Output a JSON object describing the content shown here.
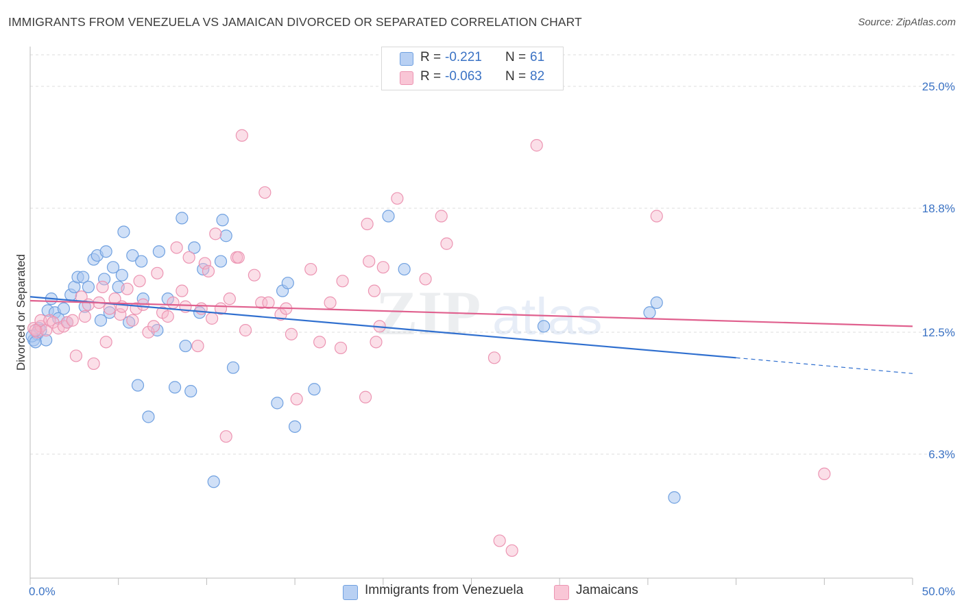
{
  "header": {
    "title": "IMMIGRANTS FROM VENEZUELA VS JAMAICAN DIVORCED OR SEPARATED CORRELATION CHART",
    "source": "Source: ZipAtlas.com"
  },
  "legend": {
    "r_label": "R =",
    "n_label": "N =",
    "rows": [
      {
        "r": "-0.221",
        "n": "61"
      },
      {
        "r": "-0.063",
        "n": "82"
      }
    ]
  },
  "bottom_legend": {
    "items": [
      "Immigrants from Venezuela",
      "Jamaicans"
    ]
  },
  "watermark": {
    "text_bold": "ZIP",
    "text_light": "atlas"
  },
  "colors": {
    "blue_fill": "#a9c6f0",
    "blue_stroke": "#6fa0e0",
    "blue_line": "#2f6fcf",
    "pink_fill": "#f7b8cc",
    "pink_stroke": "#ec94b2",
    "pink_line": "#e0608e",
    "grid": "#dddddd",
    "tick_label": "#3a72c4"
  },
  "chart_data": {
    "type": "scatter",
    "title": "IMMIGRANTS FROM VENEZUELA VS JAMAICAN DIVORCED OR SEPARATED CORRELATION CHART",
    "xlabel": "",
    "ylabel": "Divorced or Separated",
    "xlim": [
      0,
      50
    ],
    "ylim": [
      0,
      26.6
    ],
    "x_tick_labels": [
      "0.0%",
      "50.0%"
    ],
    "y_ticks": [
      6.3,
      12.5,
      18.8,
      25.0
    ],
    "y_tick_labels": [
      "6.3%",
      "12.5%",
      "18.8%",
      "25.0%"
    ],
    "grid": true,
    "legend_position": "top-center",
    "series": [
      {
        "name": "Immigrants from Venezuela",
        "color": "#a9c6f0",
        "trend": {
          "x0": 0,
          "y0": 14.3,
          "x1": 40,
          "y1": 11.2,
          "dash_to": 50,
          "dash_y": 10.4
        },
        "points": [
          [
            0.2,
            12.1
          ],
          [
            0.4,
            12.4
          ],
          [
            0.5,
            12.7
          ],
          [
            0.6,
            12.6
          ],
          [
            0.9,
            12.1
          ],
          [
            1.0,
            13.6
          ],
          [
            1.2,
            14.2
          ],
          [
            1.4,
            13.5
          ],
          [
            1.6,
            13.2
          ],
          [
            1.9,
            13.7
          ],
          [
            2.1,
            13.0
          ],
          [
            2.3,
            14.4
          ],
          [
            2.5,
            14.8
          ],
          [
            2.7,
            15.3
          ],
          [
            3.0,
            15.3
          ],
          [
            3.1,
            13.8
          ],
          [
            3.3,
            14.8
          ],
          [
            3.6,
            16.2
          ],
          [
            3.8,
            16.4
          ],
          [
            4.0,
            13.1
          ],
          [
            4.2,
            15.2
          ],
          [
            4.3,
            16.6
          ],
          [
            4.5,
            13.5
          ],
          [
            4.7,
            15.8
          ],
          [
            5.0,
            14.8
          ],
          [
            5.2,
            15.4
          ],
          [
            5.3,
            17.6
          ],
          [
            5.6,
            13.0
          ],
          [
            5.8,
            16.4
          ],
          [
            6.1,
            9.8
          ],
          [
            6.3,
            16.1
          ],
          [
            6.4,
            14.2
          ],
          [
            6.7,
            8.2
          ],
          [
            7.2,
            12.6
          ],
          [
            7.3,
            16.6
          ],
          [
            7.8,
            14.2
          ],
          [
            8.2,
            9.7
          ],
          [
            8.6,
            18.3
          ],
          [
            8.8,
            11.8
          ],
          [
            9.1,
            9.5
          ],
          [
            9.3,
            16.8
          ],
          [
            9.6,
            13.5
          ],
          [
            9.8,
            15.7
          ],
          [
            10.4,
            4.9
          ],
          [
            10.8,
            16.1
          ],
          [
            10.9,
            18.2
          ],
          [
            11.1,
            17.4
          ],
          [
            11.5,
            10.7
          ],
          [
            14.0,
            8.9
          ],
          [
            14.3,
            14.6
          ],
          [
            14.6,
            15.0
          ],
          [
            15.0,
            7.7
          ],
          [
            16.1,
            9.6
          ],
          [
            20.3,
            18.4
          ],
          [
            21.2,
            15.7
          ],
          [
            29.1,
            12.8
          ],
          [
            35.1,
            13.5
          ],
          [
            35.5,
            14.0
          ],
          [
            36.5,
            4.1
          ],
          [
            0.1,
            12.3
          ],
          [
            0.3,
            12.0
          ]
        ]
      },
      {
        "name": "Jamaicans",
        "color": "#f7b8cc",
        "trend": {
          "x0": 0,
          "y0": 14.1,
          "x1": 50,
          "y1": 12.8
        },
        "points": [
          [
            0.2,
            12.7
          ],
          [
            0.4,
            12.5
          ],
          [
            0.6,
            12.8
          ],
          [
            0.6,
            13.1
          ],
          [
            0.9,
            12.6
          ],
          [
            1.1,
            13.1
          ],
          [
            1.3,
            13.0
          ],
          [
            1.6,
            12.7
          ],
          [
            1.9,
            12.8
          ],
          [
            2.1,
            13.0
          ],
          [
            2.4,
            13.1
          ],
          [
            2.6,
            11.3
          ],
          [
            2.9,
            14.3
          ],
          [
            3.1,
            13.3
          ],
          [
            3.3,
            13.9
          ],
          [
            3.6,
            10.9
          ],
          [
            3.9,
            14.0
          ],
          [
            4.1,
            14.8
          ],
          [
            4.3,
            12.0
          ],
          [
            4.5,
            13.7
          ],
          [
            4.8,
            14.2
          ],
          [
            5.1,
            13.4
          ],
          [
            5.2,
            13.8
          ],
          [
            5.5,
            14.7
          ],
          [
            5.8,
            13.1
          ],
          [
            6.0,
            13.7
          ],
          [
            6.2,
            15.1
          ],
          [
            6.4,
            13.9
          ],
          [
            6.7,
            12.5
          ],
          [
            7.0,
            12.8
          ],
          [
            7.2,
            15.5
          ],
          [
            7.5,
            13.5
          ],
          [
            7.8,
            13.3
          ],
          [
            8.1,
            14.0
          ],
          [
            8.3,
            16.8
          ],
          [
            8.6,
            14.6
          ],
          [
            8.8,
            13.8
          ],
          [
            9.0,
            16.3
          ],
          [
            9.5,
            11.8
          ],
          [
            9.7,
            13.7
          ],
          [
            9.9,
            16.0
          ],
          [
            10.1,
            15.6
          ],
          [
            10.3,
            13.2
          ],
          [
            10.5,
            17.5
          ],
          [
            10.8,
            13.7
          ],
          [
            11.1,
            7.2
          ],
          [
            11.3,
            14.2
          ],
          [
            11.7,
            16.3
          ],
          [
            11.8,
            16.3
          ],
          [
            12.0,
            22.5
          ],
          [
            12.2,
            12.6
          ],
          [
            12.7,
            15.4
          ],
          [
            13.1,
            14.0
          ],
          [
            13.3,
            19.6
          ],
          [
            13.5,
            14.0
          ],
          [
            14.2,
            13.4
          ],
          [
            14.5,
            13.7
          ],
          [
            14.8,
            12.4
          ],
          [
            15.1,
            9.1
          ],
          [
            15.9,
            15.7
          ],
          [
            16.4,
            12.0
          ],
          [
            17.0,
            14.0
          ],
          [
            17.6,
            11.7
          ],
          [
            17.7,
            15.1
          ],
          [
            19.0,
            9.2
          ],
          [
            19.1,
            18.0
          ],
          [
            19.2,
            16.1
          ],
          [
            19.5,
            14.6
          ],
          [
            19.6,
            12.0
          ],
          [
            19.8,
            12.8
          ],
          [
            20.0,
            15.8
          ],
          [
            20.8,
            19.3
          ],
          [
            22.4,
            15.2
          ],
          [
            23.3,
            18.4
          ],
          [
            23.6,
            17.0
          ],
          [
            26.3,
            11.2
          ],
          [
            26.6,
            1.9
          ],
          [
            27.3,
            1.4
          ],
          [
            28.7,
            22.0
          ],
          [
            35.5,
            18.4
          ],
          [
            45.0,
            5.3
          ],
          [
            0.3,
            12.6
          ]
        ]
      }
    ]
  }
}
